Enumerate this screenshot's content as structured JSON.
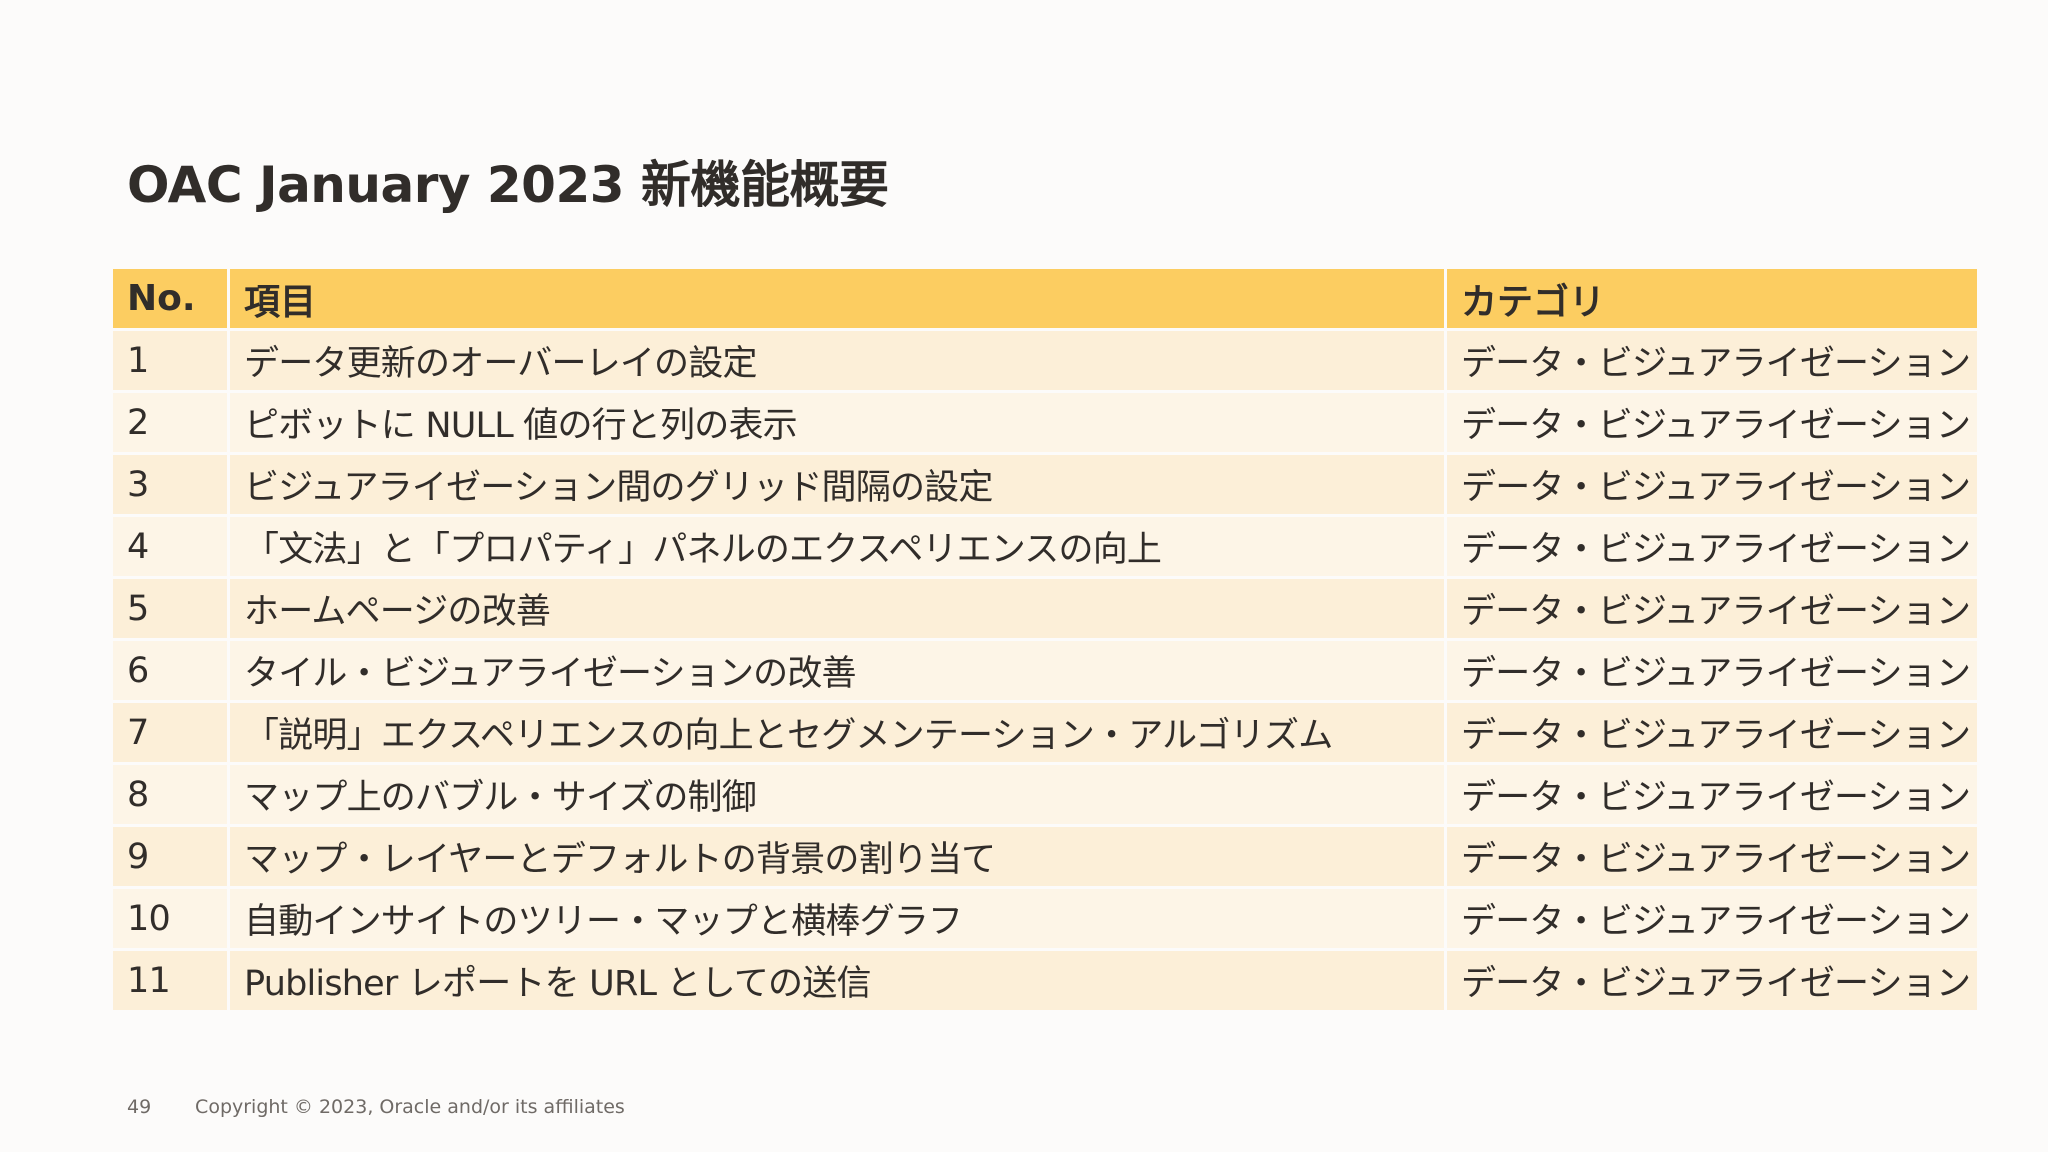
{
  "title": "OAC January 2023 新機能概要",
  "table": {
    "headers": {
      "no": "No.",
      "item": "項目",
      "category": "カテゴリ"
    },
    "rows": [
      {
        "no": "1",
        "item": "データ更新のオーバーレイの設定",
        "category": "データ・ビジュアライゼーション"
      },
      {
        "no": "2",
        "item": "ピボットに NULL 値の行と列の表示",
        "category": "データ・ビジュアライゼーション"
      },
      {
        "no": "3",
        "item": "ビジュアライゼーション間のグリッド間隔の設定",
        "category": "データ・ビジュアライゼーション"
      },
      {
        "no": "4",
        "item": "「文法」と「プロパティ」パネルのエクスペリエンスの向上",
        "category": "データ・ビジュアライゼーション"
      },
      {
        "no": "5",
        "item": "ホームページの改善",
        "category": "データ・ビジュアライゼーション"
      },
      {
        "no": "6",
        "item": "タイル・ビジュアライゼーションの改善",
        "category": "データ・ビジュアライゼーション"
      },
      {
        "no": "7",
        "item": "「説明」エクスペリエンスの向上とセグメンテーション・アルゴリズム",
        "category": "データ・ビジュアライゼーション"
      },
      {
        "no": "8",
        "item": "マップ上のバブル・サイズの制御",
        "category": "データ・ビジュアライゼーション"
      },
      {
        "no": "9",
        "item": "マップ・レイヤーとデフォルトの背景の割り当て",
        "category": "データ・ビジュアライゼーション"
      },
      {
        "no": "10",
        "item": "自動インサイトのツリー・マップと横棒グラフ",
        "category": "データ・ビジュアライゼーション"
      },
      {
        "no": "11",
        "item": "Publisher レポートを URL としての送信",
        "category": "データ・ビジュアライゼーション"
      }
    ]
  },
  "footer": {
    "page_number": "49",
    "copyright": "Copyright © 2023, Oracle and/or its affiliates"
  }
}
